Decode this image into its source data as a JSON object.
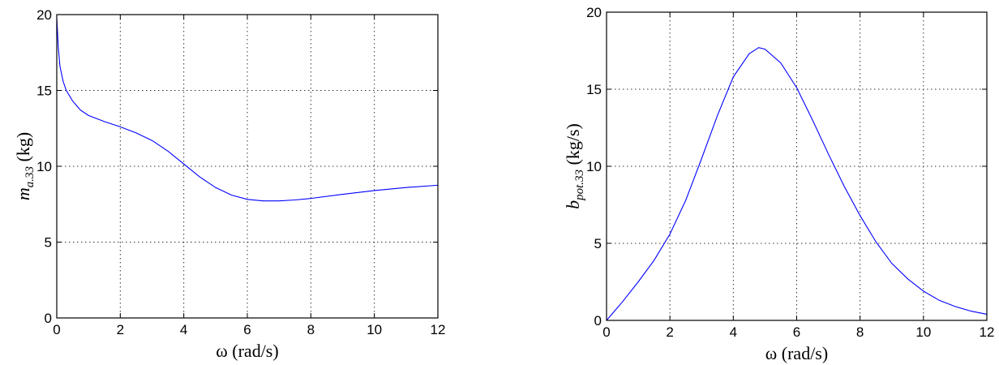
{
  "chart_data": [
    {
      "type": "line",
      "xlabel": "ω (rad/s)",
      "ylabel": "m_a.33 (kg)",
      "ylabel_main": "m",
      "ylabel_sub": "a.33",
      "ylabel_unit": " (kg)",
      "xlim": [
        0,
        12
      ],
      "ylim": [
        0,
        20
      ],
      "x_ticks": [
        "0",
        "2",
        "4",
        "6",
        "8",
        "10",
        "12"
      ],
      "y_ticks": [
        "0",
        "5",
        "10",
        "15",
        "20"
      ],
      "grid": true,
      "line_color": "#0000ff",
      "series": [
        {
          "x": [
            0.0,
            0.05,
            0.1,
            0.2,
            0.3,
            0.5,
            0.75,
            1.0,
            1.5,
            2.0,
            2.5,
            3.0,
            3.5,
            4.0,
            4.5,
            5.0,
            5.5,
            6.0,
            6.5,
            7.0,
            7.5,
            8.0,
            9.0,
            10.0,
            11.0,
            12.0
          ],
          "y": [
            19.8,
            17.8,
            16.6,
            15.6,
            15.0,
            14.3,
            13.7,
            13.35,
            12.95,
            12.6,
            12.2,
            11.7,
            11.0,
            10.15,
            9.3,
            8.6,
            8.1,
            7.82,
            7.72,
            7.72,
            7.78,
            7.88,
            8.15,
            8.4,
            8.6,
            8.75
          ]
        }
      ]
    },
    {
      "type": "line",
      "xlabel": "ω (rad/s)",
      "ylabel": "b_pot.33 (kg/s)",
      "ylabel_main": "b",
      "ylabel_sub": "pot.33",
      "ylabel_unit": " (kg/s)",
      "xlim": [
        0,
        12
      ],
      "ylim": [
        0,
        20
      ],
      "x_ticks": [
        "0",
        "2",
        "4",
        "6",
        "8",
        "10",
        "12"
      ],
      "y_ticks": [
        "0",
        "5",
        "10",
        "15",
        "20"
      ],
      "grid": true,
      "line_color": "#0000ff",
      "series": [
        {
          "x": [
            0.0,
            0.25,
            0.5,
            1.0,
            1.5,
            2.0,
            2.5,
            3.0,
            3.5,
            4.0,
            4.5,
            4.8,
            5.0,
            5.5,
            6.0,
            6.5,
            7.0,
            7.5,
            8.0,
            8.5,
            9.0,
            9.5,
            10.0,
            10.5,
            11.0,
            11.5,
            12.0
          ],
          "y": [
            0.0,
            0.6,
            1.2,
            2.5,
            3.9,
            5.6,
            7.8,
            10.5,
            13.3,
            15.8,
            17.3,
            17.7,
            17.6,
            16.7,
            15.1,
            13.0,
            10.8,
            8.7,
            6.8,
            5.1,
            3.7,
            2.7,
            1.9,
            1.3,
            0.9,
            0.6,
            0.4
          ]
        }
      ]
    }
  ]
}
